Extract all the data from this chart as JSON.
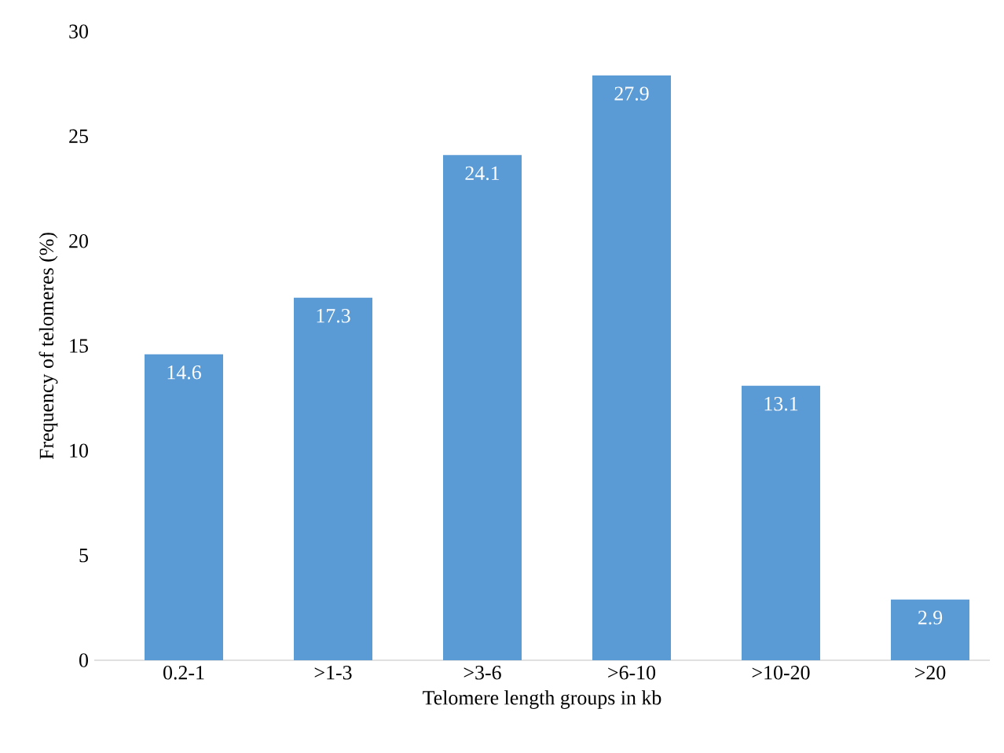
{
  "chart_data": {
    "type": "bar",
    "xlabel": "Telomere length groups in kb",
    "ylabel": "Frequency of telomeres (%)",
    "categories": [
      "0.2-1",
      ">1-3",
      ">3-6",
      ">6-10",
      ">10-20",
      ">20"
    ],
    "values": [
      14.6,
      17.3,
      24.1,
      27.9,
      13.1,
      2.9
    ],
    "color": "#5b9bd5",
    "ylim": [
      0,
      30
    ],
    "yticks": [
      0,
      5,
      10,
      15,
      20,
      25,
      30
    ],
    "data_labels": true,
    "grid": false
  }
}
